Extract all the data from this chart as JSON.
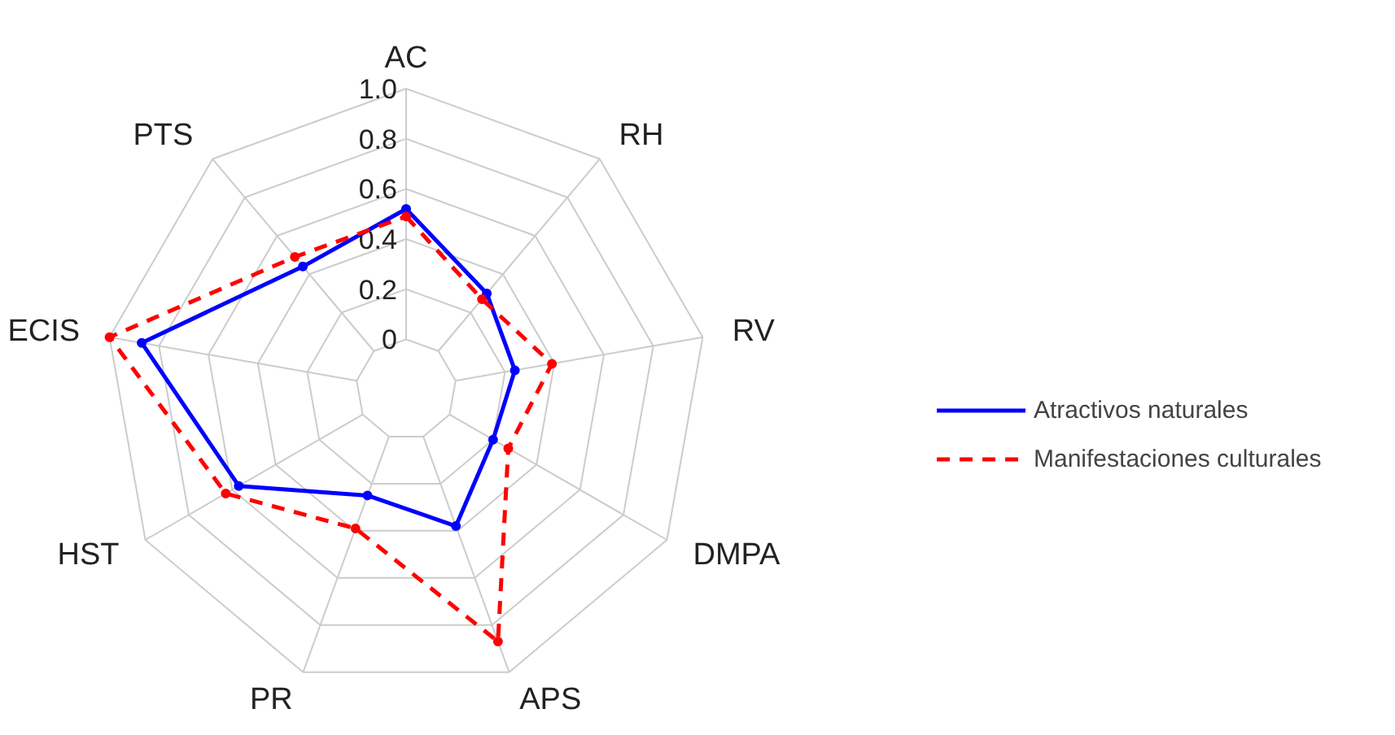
{
  "chart_data": {
    "type": "radar",
    "categories": [
      "AC",
      "RH",
      "RV",
      "DMPA",
      "APS",
      "PR",
      "HST",
      "ECIS",
      "PTS"
    ],
    "series": [
      {
        "name": "Atractivos naturales",
        "color": "#0000ff",
        "line_style": "solid",
        "values": [
          0.52,
          0.3,
          0.24,
          0.2,
          0.38,
          0.25,
          0.57,
          0.87,
          0.44
        ]
      },
      {
        "name": "Manifestaciones culturales",
        "color": "#ff0000",
        "line_style": "dashed",
        "values": [
          0.49,
          0.27,
          0.39,
          0.27,
          0.87,
          0.39,
          0.63,
          1.0,
          0.49
        ]
      }
    ],
    "ylim": [
      -0.2,
      1.0
    ],
    "yticks": [
      0,
      0.2,
      0.4,
      0.6,
      0.8,
      {
        "value": 1.0,
        "label": "1.0"
      }
    ],
    "grid": true,
    "legend": "right",
    "marker": "circle"
  }
}
